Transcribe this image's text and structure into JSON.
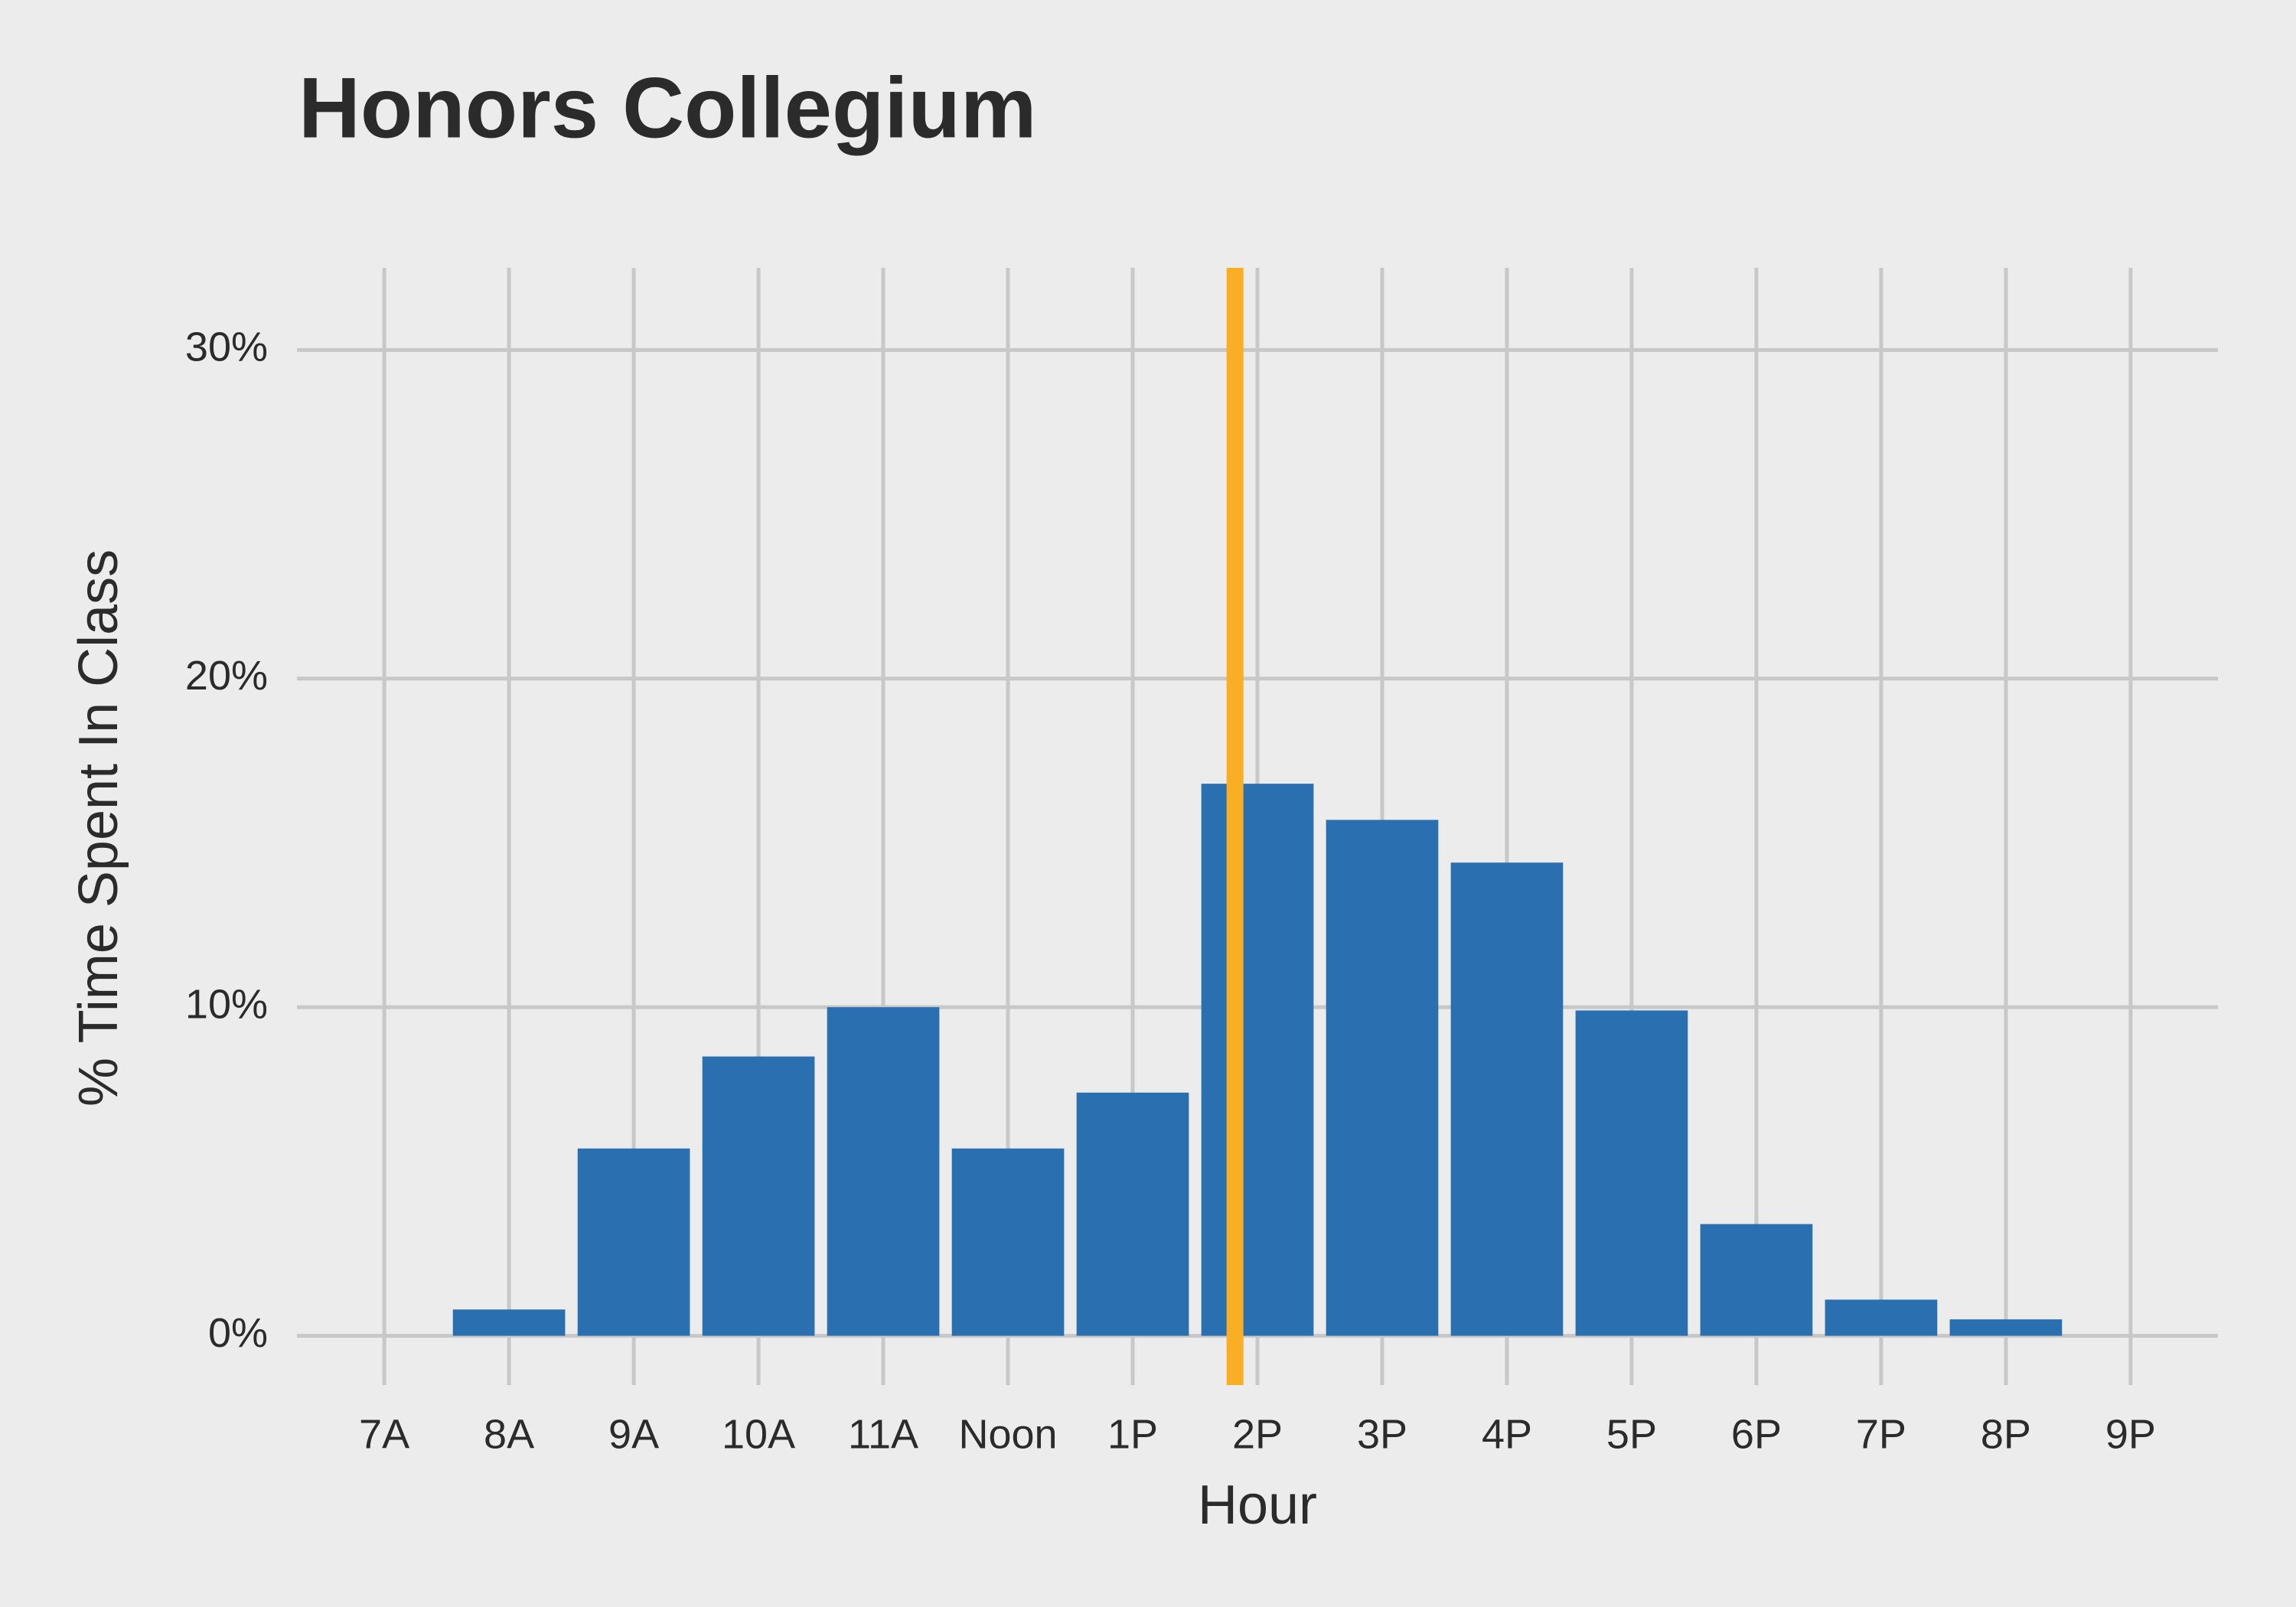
{
  "chart_data": {
    "type": "bar",
    "title": "Honors Collegium",
    "x_label": "Hour",
    "y_label": "% Time Spent In Class",
    "x": [
      7,
      8,
      9,
      10,
      11,
      12,
      13,
      14,
      15,
      16,
      17,
      18,
      19,
      20,
      21
    ],
    "values": [
      0,
      0.8,
      5.7,
      8.5,
      10.0,
      5.7,
      7.4,
      16.8,
      15.7,
      14.4,
      9.9,
      3.4,
      1.1,
      0.5,
      0
    ],
    "color": "#2a6fb0",
    "vline": 13.82,
    "vline_color": "#f9ae24",
    "xlim": [
      6.3,
      21.7
    ],
    "xticks": [
      {
        "value": 7,
        "label": "7A"
      },
      {
        "value": 8,
        "label": "8A"
      },
      {
        "value": 9,
        "label": "9A"
      },
      {
        "value": 10,
        "label": "10A"
      },
      {
        "value": 11,
        "label": "11A"
      },
      {
        "value": 12,
        "label": "Noon"
      },
      {
        "value": 13,
        "label": "1P"
      },
      {
        "value": 14,
        "label": "2P"
      },
      {
        "value": 15,
        "label": "3P"
      },
      {
        "value": 16,
        "label": "4P"
      },
      {
        "value": 17,
        "label": "5P"
      },
      {
        "value": 18,
        "label": "6P"
      },
      {
        "value": 19,
        "label": "7P"
      },
      {
        "value": 20,
        "label": "8P"
      },
      {
        "value": 21,
        "label": "9P"
      }
    ],
    "ylim": [
      -1.5,
      32.5
    ],
    "yticks": [
      {
        "value": 0,
        "label": "0%"
      },
      {
        "value": 10,
        "label": "10%"
      },
      {
        "value": 20,
        "label": "20%"
      },
      {
        "value": 30,
        "label": "30%"
      }
    ],
    "grid": true
  }
}
